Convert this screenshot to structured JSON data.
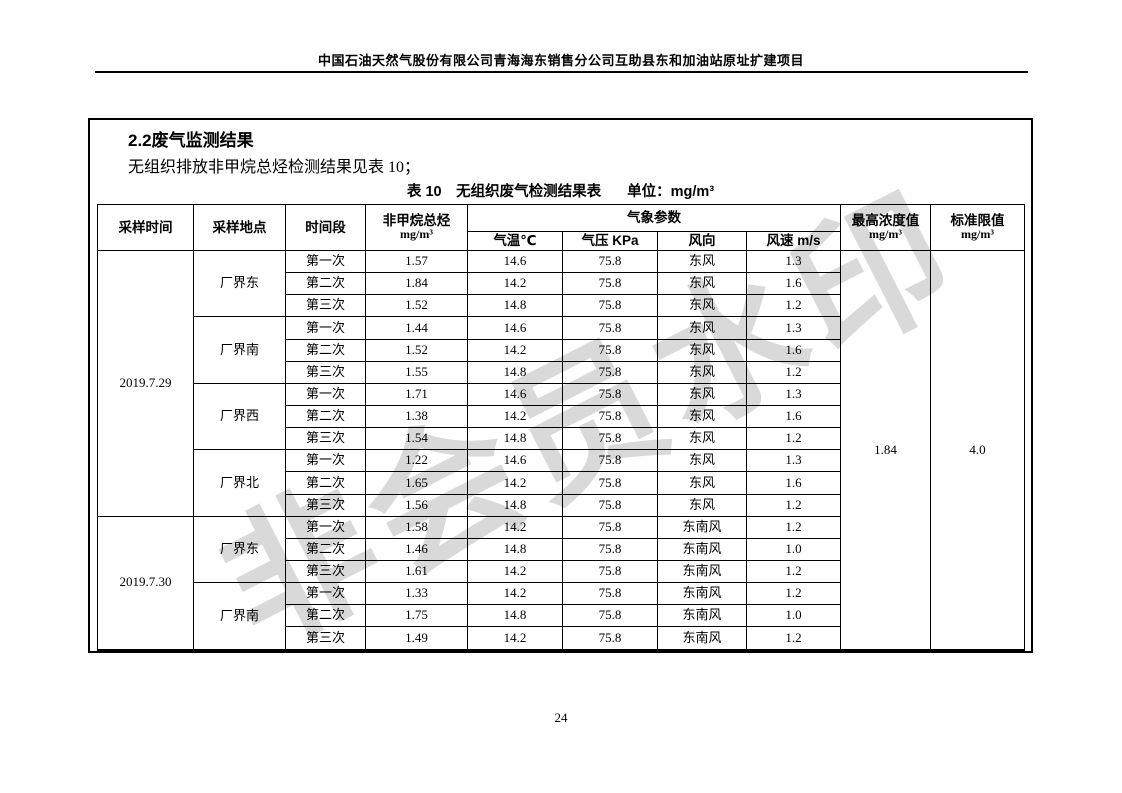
{
  "page": {
    "header_title": "中国石油天然气股份有限公司青海海东销售分公司互助县东和加油站原址扩建项目",
    "page_number": "24",
    "watermark": "非会员水印"
  },
  "section": {
    "heading": "2.2废气监测结果",
    "intro": "无组织排放非甲烷总烃检测结果见表 10；",
    "table_caption": "表 10　无组织废气检测结果表",
    "table_unit": "单位：mg/m³"
  },
  "table": {
    "headers": {
      "sample_time": "采样时间",
      "sample_location": "采样地点",
      "period": "时间段",
      "nmhc": "非甲烷总烃",
      "nmhc_unit": "mg/m³",
      "weather_group": "气象参数",
      "temp": "气温℃",
      "pressure": "气压 KPa",
      "wind_dir": "风向",
      "wind_speed": "风速 m/s",
      "max_value": "最高浓度值",
      "max_unit": "mg/m³",
      "limit": "标准限值",
      "limit_unit": "mg/m³"
    },
    "max_concentration": "1.84",
    "standard_limit": "4.0",
    "groups": [
      {
        "date": "2019.7.29",
        "locations": [
          {
            "name": "厂界东",
            "rows": [
              [
                "第一次",
                "1.57",
                "14.6",
                "75.8",
                "东风",
                "1.3"
              ],
              [
                "第二次",
                "1.84",
                "14.2",
                "75.8",
                "东风",
                "1.6"
              ],
              [
                "第三次",
                "1.52",
                "14.8",
                "75.8",
                "东风",
                "1.2"
              ]
            ]
          },
          {
            "name": "厂界南",
            "rows": [
              [
                "第一次",
                "1.44",
                "14.6",
                "75.8",
                "东风",
                "1.3"
              ],
              [
                "第二次",
                "1.52",
                "14.2",
                "75.8",
                "东风",
                "1.6"
              ],
              [
                "第三次",
                "1.55",
                "14.8",
                "75.8",
                "东风",
                "1.2"
              ]
            ]
          },
          {
            "name": "厂界西",
            "rows": [
              [
                "第一次",
                "1.71",
                "14.6",
                "75.8",
                "东风",
                "1.3"
              ],
              [
                "第二次",
                "1.38",
                "14.2",
                "75.8",
                "东风",
                "1.6"
              ],
              [
                "第三次",
                "1.54",
                "14.8",
                "75.8",
                "东风",
                "1.2"
              ]
            ]
          },
          {
            "name": "厂界北",
            "rows": [
              [
                "第一次",
                "1.22",
                "14.6",
                "75.8",
                "东风",
                "1.3"
              ],
              [
                "第二次",
                "1.65",
                "14.2",
                "75.8",
                "东风",
                "1.6"
              ],
              [
                "第三次",
                "1.56",
                "14.8",
                "75.8",
                "东风",
                "1.2"
              ]
            ]
          }
        ]
      },
      {
        "date": "2019.7.30",
        "locations": [
          {
            "name": "厂界东",
            "rows": [
              [
                "第一次",
                "1.58",
                "14.2",
                "75.8",
                "东南风",
                "1.2"
              ],
              [
                "第二次",
                "1.46",
                "14.8",
                "75.8",
                "东南风",
                "1.0"
              ],
              [
                "第三次",
                "1.61",
                "14.2",
                "75.8",
                "东南风",
                "1.2"
              ]
            ]
          },
          {
            "name": "厂界南",
            "rows": [
              [
                "第一次",
                "1.33",
                "14.2",
                "75.8",
                "东南风",
                "1.2"
              ],
              [
                "第二次",
                "1.75",
                "14.8",
                "75.8",
                "东南风",
                "1.0"
              ],
              [
                "第三次",
                "1.49",
                "14.2",
                "75.8",
                "东南风",
                "1.2"
              ]
            ]
          }
        ]
      }
    ]
  }
}
